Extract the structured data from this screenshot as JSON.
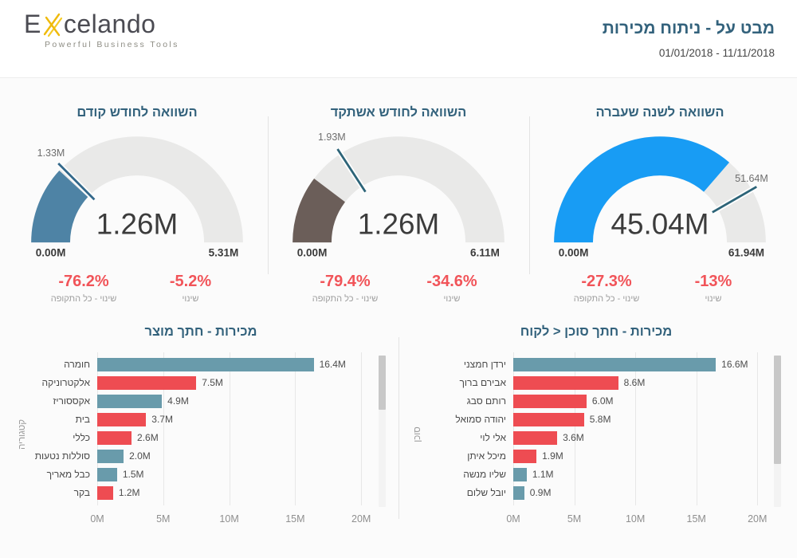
{
  "header": {
    "logo_text_start": "E",
    "logo_text_end": "celando",
    "logo_tagline": "Powerful Business Tools",
    "title": "מבט על - ניתוח מכירות",
    "date_range": "01/01/2018 - 11/11/2018"
  },
  "colors": {
    "title_teal": "#33627C",
    "negative_red": "#F15459",
    "bar_blue": "#699BAB",
    "bar_red": "#EE4C52",
    "gauge_track": "#E9E9E8",
    "logo_gold": "#EFBA0B"
  },
  "chart_data": [
    {
      "type": "gauge",
      "title": "השוואה לחודש קודם",
      "value": 1.26,
      "min": 0,
      "max": 5.31,
      "target": 1.33,
      "value_label": "1.26M",
      "min_label": "0.00M",
      "max_label": "5.31M",
      "target_label": "1.33M",
      "fill_color": "#4E83A5",
      "marker_color": "#33688A",
      "stats": [
        {
          "value": "-76.2%",
          "label": "שינוי - כל התקופה"
        },
        {
          "value": "-5.2%",
          "label": "שינוי"
        }
      ]
    },
    {
      "type": "gauge",
      "title": "השוואה לחודש אשתקד",
      "value": 1.26,
      "min": 0,
      "max": 6.11,
      "target": 1.93,
      "value_label": "1.26M",
      "min_label": "0.00M",
      "max_label": "6.11M",
      "target_label": "1.93M",
      "fill_color": "#6B5E59",
      "marker_color": "#2D6478",
      "stats": [
        {
          "value": "-79.4%",
          "label": "שינוי - כל התקופה"
        },
        {
          "value": "-34.6%",
          "label": "שינוי"
        }
      ]
    },
    {
      "type": "gauge",
      "title": "השוואה לשנה שעברה",
      "value": 45.04,
      "min": 0,
      "max": 61.94,
      "target": 51.64,
      "value_label": "45.04M",
      "min_label": "0.00M",
      "max_label": "61.94M",
      "target_label": "51.64M",
      "fill_color": "#189CF4",
      "marker_color": "#2D6478",
      "stats": [
        {
          "value": "-27.3%",
          "label": "שינוי - כל התקופה"
        },
        {
          "value": "-13%",
          "label": "שינוי"
        }
      ]
    },
    {
      "type": "bar",
      "title": "מכירות - חתך מוצר",
      "ylabel": "קטגוריה",
      "xlim": [
        0,
        20
      ],
      "x_ticks": [
        "0M",
        "5M",
        "10M",
        "15M",
        "20M"
      ],
      "categories": [
        "חומרה",
        "אלקטרוניקה",
        "אקססוריז",
        "בית",
        "כללי",
        "סוללות נטעות",
        "כבל מאריך",
        "בקר"
      ],
      "values": [
        16.4,
        7.5,
        4.9,
        3.7,
        2.6,
        2.0,
        1.5,
        1.2
      ],
      "value_labels": [
        "16.4M",
        "7.5M",
        "4.9M",
        "3.7M",
        "2.6M",
        "2.0M",
        "1.5M",
        "1.2M"
      ],
      "bar_colors": [
        "blue",
        "red",
        "blue",
        "red",
        "red",
        "blue",
        "blue",
        "red"
      ]
    },
    {
      "type": "bar",
      "title": "מכירות - חתך סוכן ‎>‎ לקוח",
      "ylabel": "סוכן",
      "xlim": [
        0,
        20
      ],
      "x_ticks": [
        "0M",
        "5M",
        "10M",
        "15M",
        "20M"
      ],
      "categories": [
        "ירדן חמצני",
        "אבירם ברוך",
        "רותם סבג",
        "יהודה סמואל",
        "אלי לוי",
        "מיכל איתן",
        "שליו מנשה",
        "יובל שלום"
      ],
      "values": [
        16.6,
        8.6,
        6.0,
        5.8,
        3.6,
        1.9,
        1.1,
        0.9
      ],
      "value_labels": [
        "16.6M",
        "8.6M",
        "6.0M",
        "5.8M",
        "3.6M",
        "1.9M",
        "1.1M",
        "0.9M"
      ],
      "bar_colors": [
        "blue",
        "red",
        "red",
        "red",
        "red",
        "red",
        "blue",
        "blue"
      ]
    }
  ]
}
